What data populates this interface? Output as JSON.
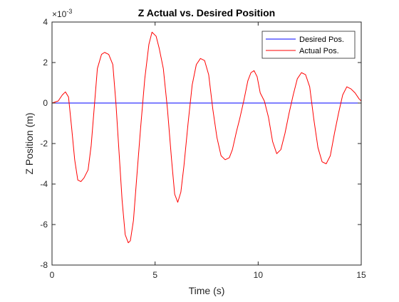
{
  "chart_data": {
    "type": "line",
    "title": "Z Actual vs. Desired Position",
    "xlabel": "Time (s)",
    "ylabel": "Z Position (m)",
    "exponent_label": "×10",
    "exponent_power": "-3",
    "xlim": [
      0,
      15
    ],
    "ylim": [
      -0.008,
      0.004
    ],
    "xticks": [
      0,
      5,
      10,
      15
    ],
    "xtick_labels": [
      "0",
      "5",
      "10",
      "15"
    ],
    "yticks": [
      -0.008,
      -0.006,
      -0.004,
      -0.002,
      0,
      0.002,
      0.004
    ],
    "ytick_labels": [
      "-8",
      "-6",
      "-4",
      "-2",
      "0",
      "2",
      "4"
    ],
    "grid": false,
    "legend_position": "top-right",
    "series": [
      {
        "name": "Desired Pos.",
        "color": "#0000ff",
        "x": [
          0,
          15
        ],
        "y": [
          0,
          0
        ]
      },
      {
        "name": "Actual Pos.",
        "color": "#ff0000",
        "x": [
          0,
          0.3,
          0.5,
          0.65,
          0.8,
          0.95,
          1.1,
          1.25,
          1.4,
          1.55,
          1.75,
          1.9,
          2.05,
          2.2,
          2.4,
          2.55,
          2.75,
          2.95,
          3.1,
          3.25,
          3.4,
          3.55,
          3.7,
          3.8,
          3.95,
          4.1,
          4.3,
          4.5,
          4.7,
          4.85,
          5.05,
          5.2,
          5.4,
          5.6,
          5.8,
          5.95,
          6.1,
          6.25,
          6.4,
          6.6,
          6.8,
          7.0,
          7.2,
          7.4,
          7.6,
          7.8,
          8.0,
          8.2,
          8.4,
          8.6,
          8.75,
          8.95,
          9.1,
          9.3,
          9.5,
          9.65,
          9.8,
          9.95,
          10.1,
          10.3,
          10.5,
          10.7,
          10.9,
          11.1,
          11.3,
          11.5,
          11.7,
          11.9,
          12.1,
          12.3,
          12.5,
          12.7,
          12.9,
          13.1,
          13.3,
          13.5,
          13.7,
          13.9,
          14.1,
          14.3,
          14.5,
          14.7,
          14.9,
          15.0
        ],
        "y": [
          0,
          0.0001,
          0.0004,
          0.00055,
          0.0003,
          -0.0012,
          -0.0028,
          -0.0038,
          -0.00388,
          -0.0037,
          -0.0033,
          -0.0021,
          -0.0002,
          0.0017,
          0.0024,
          0.0025,
          0.0024,
          0.0019,
          0.0,
          -0.0024,
          -0.0048,
          -0.0065,
          -0.0069,
          -0.0068,
          -0.0058,
          -0.0038,
          -0.0012,
          0.0012,
          0.0029,
          0.0035,
          0.0033,
          0.0027,
          0.0017,
          -0.0003,
          -0.0028,
          -0.0045,
          -0.0049,
          -0.0044,
          -0.0031,
          -0.001,
          0.0009,
          0.0019,
          0.0022,
          0.0021,
          0.0014,
          -0.0003,
          -0.0017,
          -0.0026,
          -0.0028,
          -0.0027,
          -0.0023,
          -0.0014,
          -0.0008,
          0.0001,
          0.0011,
          0.0015,
          0.0016,
          0.0013,
          0.0005,
          0.0001,
          -0.0007,
          -0.0019,
          -0.0025,
          -0.0023,
          -0.0015,
          -0.0005,
          0.0004,
          0.0012,
          0.0015,
          0.0014,
          0.0008,
          -0.0008,
          -0.0022,
          -0.0029,
          -0.003,
          -0.0026,
          -0.0015,
          -0.0005,
          0.0004,
          0.0008,
          0.0007,
          0.0005,
          0.0002,
          0.0001
        ]
      }
    ]
  }
}
